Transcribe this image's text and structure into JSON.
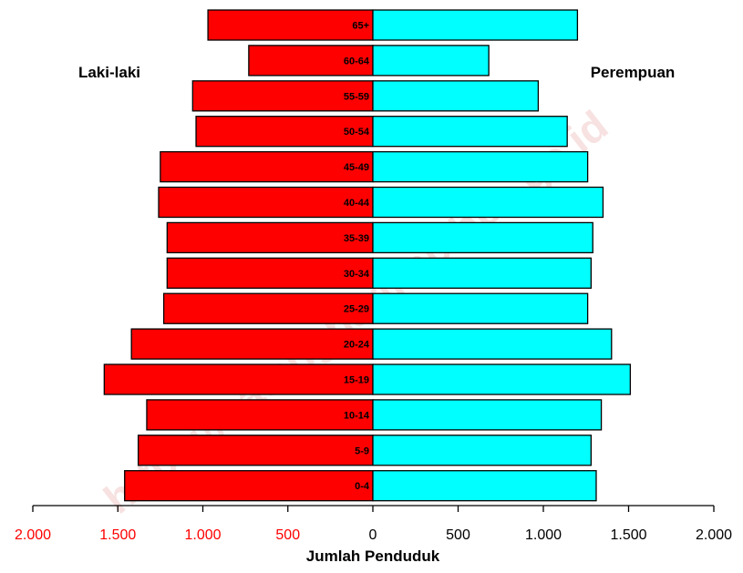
{
  "chart_data": {
    "type": "bar",
    "orientation": "horizontal",
    "categories": [
      "65+",
      "60-64",
      "55-59",
      "50-54",
      "45-49",
      "40-44",
      "35-39",
      "30-34",
      "25-29",
      "20-24",
      "15-19",
      "10-14",
      "5-9",
      "0-4"
    ],
    "series": [
      {
        "name": "Laki-laki",
        "color": "#ff0000",
        "values": [
          970,
          730,
          1060,
          1040,
          1250,
          1260,
          1210,
          1210,
          1230,
          1420,
          1580,
          1330,
          1380,
          1460
        ]
      },
      {
        "name": "Perempuan",
        "color": "#00ffff",
        "values": [
          1200,
          680,
          970,
          1140,
          1260,
          1350,
          1290,
          1280,
          1260,
          1400,
          1510,
          1340,
          1280,
          1310
        ]
      }
    ],
    "xlabel": "Jumlah Penduduk",
    "xlim": [
      -2000,
      2000
    ],
    "tick_values": [
      -2000,
      -1500,
      -1000,
      -500,
      0,
      500,
      1000,
      1500,
      2000
    ],
    "tick_labels": [
      "2.000",
      "1.500",
      "1.000",
      "500",
      "0",
      "500",
      "1.000",
      "1.500",
      "2.000"
    ],
    "tick_colors": {
      "left": "#ff0000",
      "right": "#000000"
    },
    "labels": {
      "male": "Laki-laki",
      "female": "Perempuan"
    },
    "watermark": "https://batangharikab.bps.go.id",
    "grid": false,
    "legend": "none"
  }
}
